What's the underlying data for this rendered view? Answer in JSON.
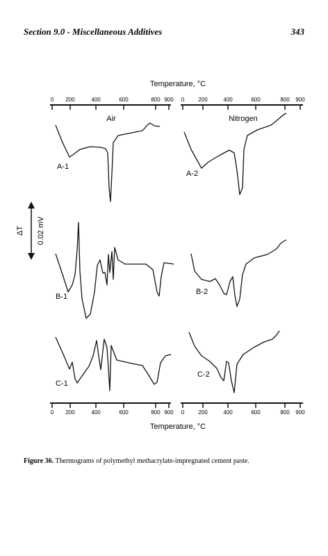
{
  "header": {
    "section": "Section 9.0 - Miscellaneous Additives",
    "page": "343"
  },
  "figure": {
    "top_axis": {
      "title": "Temperature, °C",
      "left_ticks": [
        "0",
        "200",
        "400",
        "600",
        "800",
        "900"
      ],
      "right_ticks": [
        "0",
        "200",
        "400",
        "600",
        "800",
        "900"
      ]
    },
    "bottom_axis": {
      "title": "Temperature, °C",
      "left_ticks": [
        "0",
        "200",
        "400",
        "600",
        "800",
        "900"
      ],
      "right_ticks": [
        "0",
        "200",
        "400",
        "600",
        "800",
        "900"
      ]
    },
    "panels": [
      "Air",
      "Nitrogen"
    ],
    "curve_labels": [
      "A-1",
      "A-2",
      "B-1",
      "B-2",
      "C-1",
      "C-2"
    ],
    "scale": {
      "symbol": "ΔT",
      "value": "0.02 mV"
    }
  },
  "caption": {
    "label": "Figure 36.",
    "text": " Thermograms of polymethyl methacrylate-impregnated cement paste."
  }
}
